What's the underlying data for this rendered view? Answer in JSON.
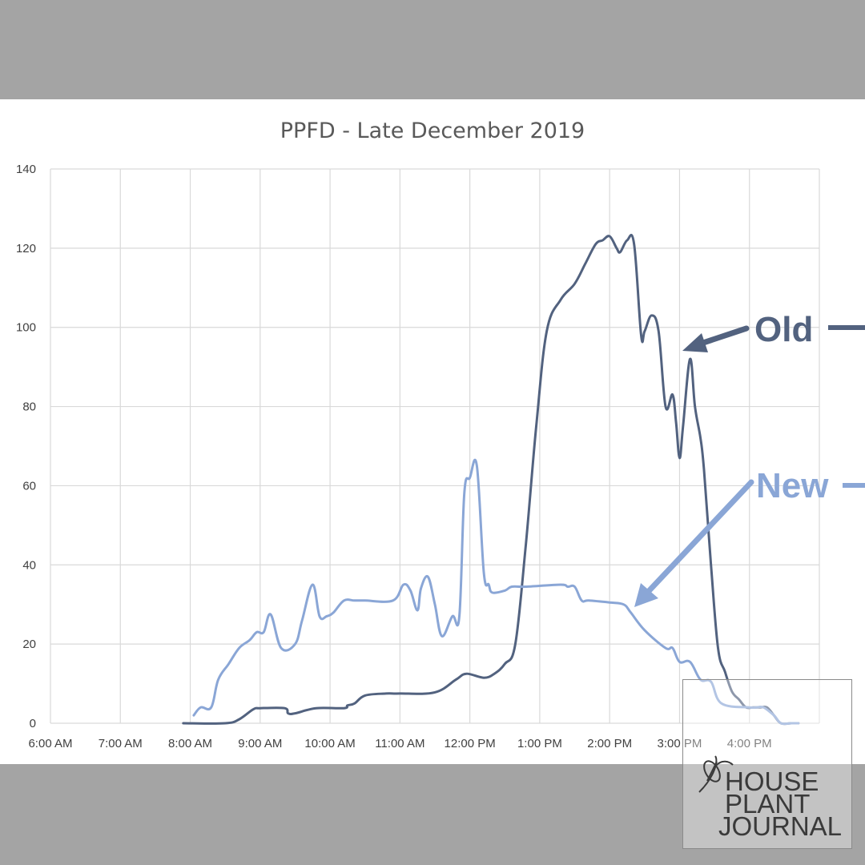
{
  "chart_data": {
    "type": "line",
    "title": "PPFD - Late December 2019",
    "xlabel": "",
    "ylabel": "",
    "ylim": [
      0,
      140
    ],
    "yticks": [
      0,
      20,
      40,
      60,
      80,
      100,
      120,
      140
    ],
    "xlim": [
      6,
      17
    ],
    "x_tick_labels": [
      "6:00 AM",
      "7:00 AM",
      "8:00 AM",
      "9:00 AM",
      "10:00 AM",
      "11:00 AM",
      "12:00 PM",
      "1:00 PM",
      "2:00 PM",
      "3:00 PM",
      "4:00 PM"
    ],
    "grid": true,
    "series": [
      {
        "name": "Old",
        "color": "#52627f",
        "x": [
          7.9,
          8.5,
          8.7,
          8.9,
          9.0,
          9.35,
          9.4,
          9.5,
          9.8,
          10.2,
          10.25,
          10.35,
          10.5,
          10.8,
          11.0,
          11.5,
          11.8,
          11.95,
          12.2,
          12.35,
          12.5,
          12.65,
          12.8,
          12.95,
          13.1,
          13.3,
          13.5,
          13.65,
          13.8,
          13.9,
          14.0,
          14.1,
          14.15,
          14.25,
          14.35,
          14.45,
          14.5,
          14.6,
          14.7,
          14.8,
          14.9,
          14.95,
          15.0,
          15.05,
          15.15,
          15.22,
          15.3,
          15.35,
          15.45,
          15.55,
          15.65,
          15.75,
          15.85,
          15.95,
          16.05,
          16.15,
          16.25,
          16.35,
          16.45,
          16.6,
          16.7
        ],
        "y": [
          0,
          0,
          1,
          3.5,
          3.8,
          3.8,
          2.5,
          2.5,
          3.8,
          3.8,
          4.5,
          5,
          7,
          7.5,
          7.5,
          7.8,
          11,
          12.5,
          11.5,
          12.5,
          15,
          20,
          45,
          75,
          99,
          107,
          111,
          116,
          121,
          122,
          123,
          120,
          119,
          122,
          121,
          98,
          99,
          103,
          99,
          80,
          83,
          76,
          67,
          75,
          92,
          80,
          72,
          64,
          40,
          19,
          13,
          8,
          6,
          4,
          4,
          4,
          4,
          2,
          0,
          0,
          0
        ]
      },
      {
        "name": "New",
        "color": "#8aa6d6",
        "x": [
          8.05,
          8.15,
          8.3,
          8.4,
          8.55,
          8.7,
          8.85,
          8.95,
          9.05,
          9.15,
          9.3,
          9.5,
          9.6,
          9.75,
          9.85,
          9.95,
          10.05,
          10.2,
          10.35,
          10.5,
          10.9,
          11.05,
          11.15,
          11.25,
          11.3,
          11.4,
          11.5,
          11.6,
          11.75,
          11.85,
          11.92,
          12.0,
          12.1,
          12.2,
          12.27,
          12.32,
          12.5,
          12.6,
          12.8,
          13.3,
          13.4,
          13.5,
          13.6,
          13.7,
          14.0,
          14.2,
          14.3,
          14.5,
          14.8,
          14.9,
          15.0,
          15.15,
          15.3,
          15.45,
          15.6,
          16.0,
          16.1,
          16.2,
          16.35,
          16.45,
          16.6,
          16.7
        ],
        "y": [
          2,
          4,
          4,
          11,
          15,
          19,
          21,
          23,
          23,
          27.5,
          19,
          20,
          26,
          35,
          27,
          27,
          28,
          31,
          31,
          31,
          31,
          35,
          33.5,
          28.5,
          34,
          37,
          30,
          22,
          27,
          27,
          58,
          62,
          65,
          38,
          35,
          33,
          33.5,
          34.5,
          34.5,
          35,
          34.5,
          34.5,
          31,
          31,
          30.5,
          30,
          28,
          23.5,
          19,
          19,
          15.5,
          15.5,
          11,
          10.5,
          5,
          4,
          4,
          4,
          2,
          0,
          0,
          0
        ]
      }
    ]
  },
  "watermark": {
    "line1": "HOUSE",
    "line2": "PLANT",
    "line3": "JOURNAL"
  }
}
